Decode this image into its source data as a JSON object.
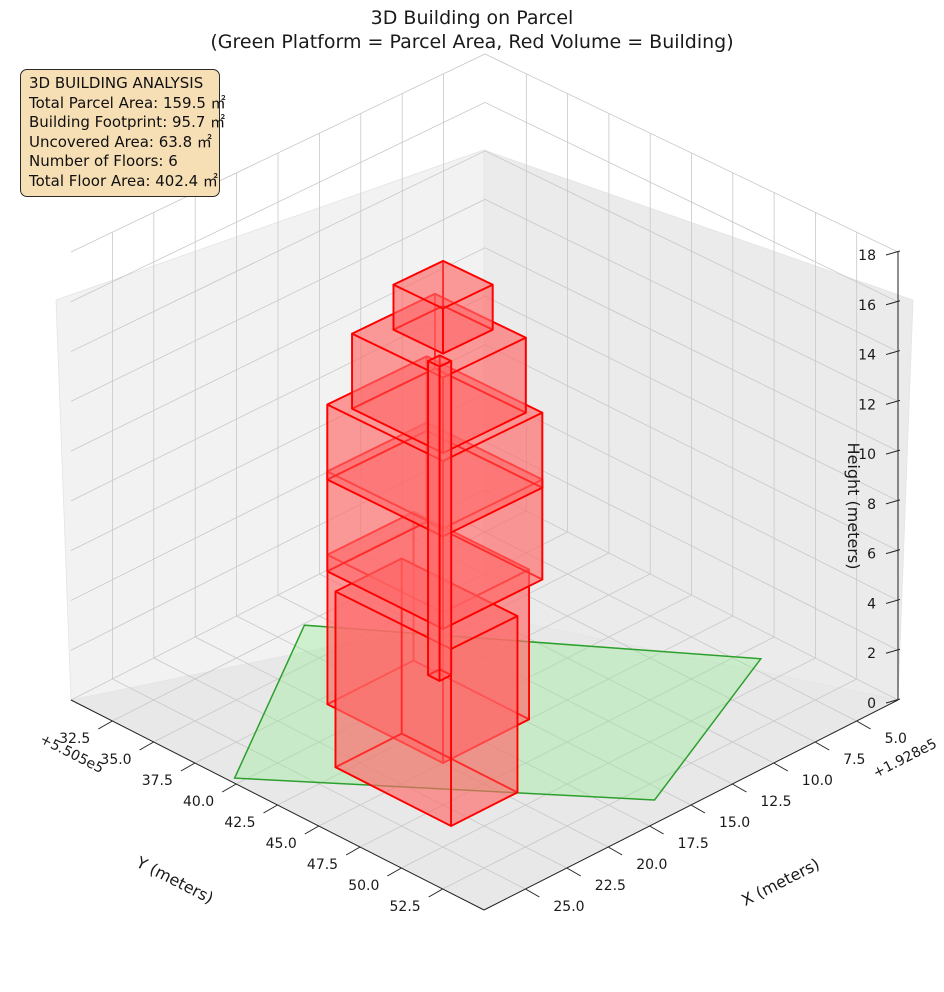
{
  "chart_data": {
    "type": "3d-polygon",
    "title": "3D Building on Parcel",
    "subtitle": "(Green Platform = Parcel Area, Red Volume = Building)",
    "xlabel": "X (meters)",
    "ylabel": "Y (meters)",
    "zlabel": "Height (meters)",
    "x_offset_label": "+1.928e5",
    "y_offset_label": "+5.505e5",
    "xlim": [
      2.5,
      27.5
    ],
    "ylim": [
      30.0,
      55.0
    ],
    "zlim": [
      0,
      18
    ],
    "x_ticks": [
      "5.0",
      "7.5",
      "10.0",
      "12.5",
      "15.0",
      "17.5",
      "20.0",
      "22.5",
      "25.0"
    ],
    "y_ticks": [
      "32.5",
      "35.0",
      "37.5",
      "40.0",
      "42.5",
      "45.0",
      "47.5",
      "50.0",
      "52.5"
    ],
    "z_ticks": [
      "0",
      "2",
      "4",
      "6",
      "8",
      "10",
      "12",
      "14",
      "16",
      "18"
    ],
    "grid": true,
    "series": [
      {
        "name": "Parcel Area",
        "color": "#2ca02c",
        "fill": "#90ee90"
      },
      {
        "name": "Building",
        "color": "#ff0000",
        "fill": "#ff6a6a"
      }
    ],
    "info_box": {
      "heading": "3D BUILDING ANALYSIS",
      "lines": [
        "Total Parcel Area: 159.5 ㎡",
        "Building Footprint: 95.7 ㎡",
        "Uncovered Area: 63.8 ㎡",
        "Number of Floors: 6",
        "Total Floor Area: 402.4 ㎡"
      ]
    }
  }
}
